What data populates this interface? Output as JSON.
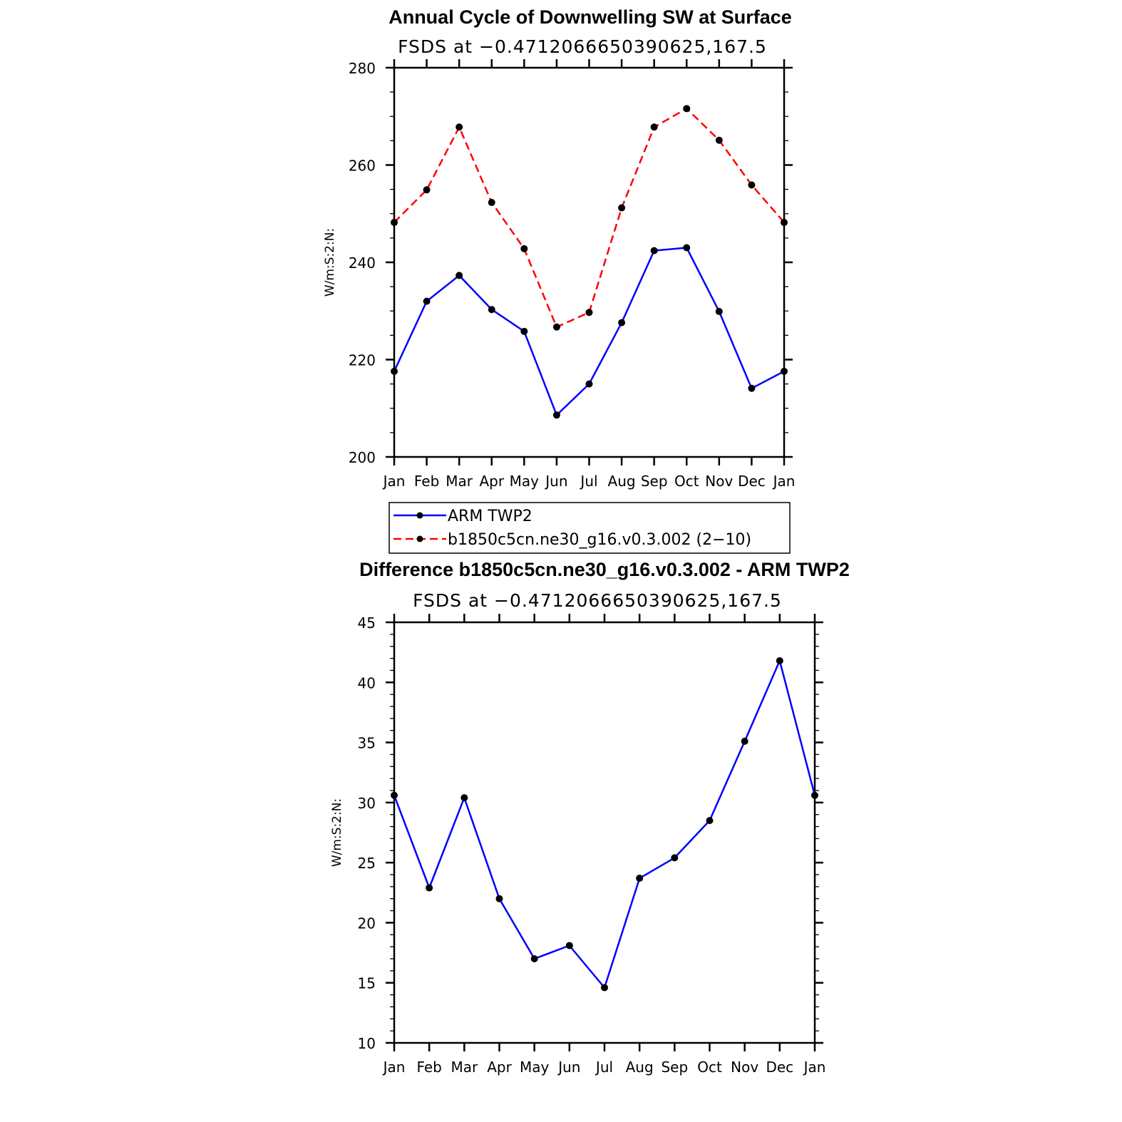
{
  "chart_data": [
    {
      "type": "line",
      "title": "Annual Cycle of Downwelling SW at Surface",
      "subtitle": "FSDS at −0.4712066650390625,167.5",
      "ylabel": "W/m:S:2:N:",
      "xlabel": "",
      "ylim": [
        200,
        280
      ],
      "yticks": [
        200,
        220,
        240,
        260,
        280
      ],
      "categories": [
        "Jan",
        "Feb",
        "Mar",
        "Apr",
        "May",
        "Jun",
        "Jul",
        "Aug",
        "Sep",
        "Oct",
        "Nov",
        "Dec",
        "Jan"
      ],
      "grid": false,
      "legend": "bottom",
      "series": [
        {
          "name": "ARM TWP2",
          "color": "#0000ff",
          "dash": "solid",
          "values": [
            217.6,
            232.0,
            237.3,
            230.3,
            225.8,
            208.6,
            215.0,
            227.6,
            242.4,
            243.0,
            229.9,
            214.1,
            217.6
          ]
        },
        {
          "name": "b1850c5cn.ne30_g16.v0.3.002 (2−10)",
          "color": "#ff0000",
          "dash": "dashed",
          "values": [
            248.2,
            254.9,
            267.8,
            252.3,
            242.8,
            226.7,
            229.7,
            251.2,
            267.8,
            271.6,
            265.1,
            255.9,
            248.2
          ]
        }
      ]
    },
    {
      "type": "line",
      "title": "Difference b1850c5cn.ne30_g16.v0.3.002 - ARM TWP2",
      "subtitle": "FSDS at −0.4712066650390625,167.5",
      "ylabel": "W/m:S:2:N:",
      "xlabel": "",
      "ylim": [
        10,
        45
      ],
      "yticks": [
        10,
        15,
        20,
        25,
        30,
        35,
        40,
        45
      ],
      "categories": [
        "Jan",
        "Feb",
        "Mar",
        "Apr",
        "May",
        "Jun",
        "Jul",
        "Aug",
        "Sep",
        "Oct",
        "Nov",
        "Dec",
        "Jan"
      ],
      "grid": false,
      "legend": "none",
      "series": [
        {
          "color": "#0000ff",
          "dash": "solid",
          "values": [
            30.6,
            22.9,
            30.4,
            22.0,
            17.0,
            18.1,
            14.6,
            23.7,
            25.4,
            28.5,
            35.1,
            41.8,
            30.6
          ]
        }
      ]
    }
  ]
}
